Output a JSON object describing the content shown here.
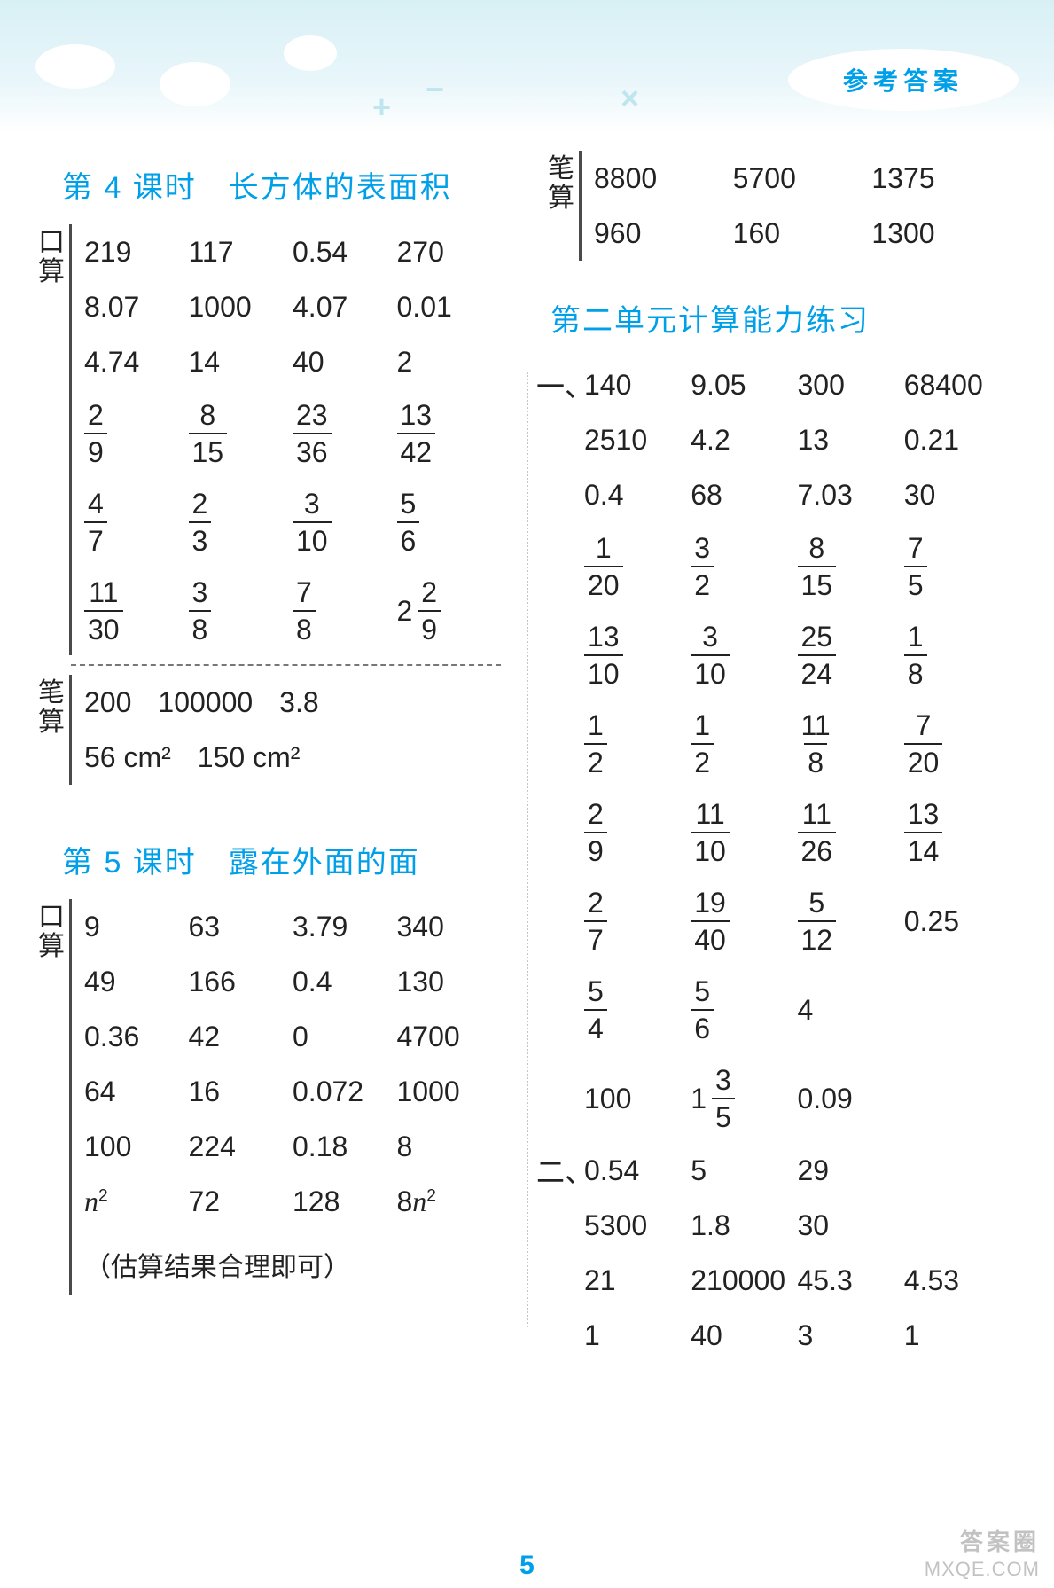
{
  "header": {
    "badge": "参考答案"
  },
  "pageNumber": "5",
  "watermark": {
    "line1": "答案圈",
    "line2": "MXQE.COM"
  },
  "left": {
    "sec4": {
      "title": "第 4 课时　长方体的表面积",
      "kousuan_label": "口算",
      "bisuan_label": "笔算",
      "plain_rows": [
        [
          "219",
          "117",
          "0.54",
          "270"
        ],
        [
          "8.07",
          "1000",
          "4.07",
          "0.01"
        ],
        [
          "4.74",
          "14",
          "40",
          "2"
        ]
      ],
      "frac_rows": [
        [
          [
            "2",
            "9"
          ],
          [
            "8",
            "15"
          ],
          [
            "23",
            "36"
          ],
          [
            "13",
            "42"
          ]
        ],
        [
          [
            "4",
            "7"
          ],
          [
            "2",
            "3"
          ],
          [
            "3",
            "10"
          ],
          [
            "5",
            "6"
          ]
        ]
      ],
      "mixed_row": {
        "cells": [
          {
            "type": "frac",
            "n": "11",
            "d": "30"
          },
          {
            "type": "frac",
            "n": "3",
            "d": "8"
          },
          {
            "type": "frac",
            "n": "7",
            "d": "8"
          },
          {
            "type": "mixed",
            "w": "2",
            "n": "2",
            "d": "9"
          }
        ]
      },
      "bisuan_rows": [
        [
          "200",
          "100000",
          "3.8"
        ],
        [
          "56 cm²",
          "150 cm²"
        ]
      ]
    },
    "sec5": {
      "title": "第 5 课时　露在外面的面",
      "kousuan_label": "口算",
      "bisuan_label": "笔算",
      "plain_rows": [
        [
          "9",
          "63",
          "3.79",
          "340"
        ],
        [
          "49",
          "166",
          "0.4",
          "130"
        ],
        [
          "0.36",
          "42",
          "0",
          "4700"
        ],
        [
          "64",
          "16",
          "0.072",
          "1000"
        ],
        [
          "100",
          "224",
          "0.18",
          "8"
        ]
      ],
      "n_row": [
        "n²",
        "72",
        "128",
        "8n²"
      ],
      "note": "（估算结果合理即可）"
    }
  },
  "right": {
    "top_bisuan": {
      "label": "笔算",
      "rows": [
        [
          "8800",
          "5700",
          "1375"
        ],
        [
          "960",
          "160",
          "1300"
        ]
      ]
    },
    "unit2": {
      "title": "第二单元计算能力练习",
      "yi_label": "一、",
      "er_label": "二、",
      "yi_plain_rows": [
        [
          "140",
          "9.05",
          "300",
          "68400"
        ],
        [
          "2510",
          "4.2",
          "13",
          "0.21"
        ],
        [
          "0.4",
          "68",
          "7.03",
          "30"
        ]
      ],
      "yi_frac_rows": [
        [
          [
            "1",
            "20"
          ],
          [
            "3",
            "2"
          ],
          [
            "8",
            "15"
          ],
          [
            "7",
            "5"
          ]
        ],
        [
          [
            "13",
            "10"
          ],
          [
            "3",
            "10"
          ],
          [
            "25",
            "24"
          ],
          [
            "1",
            "8"
          ]
        ],
        [
          [
            "1",
            "2"
          ],
          [
            "1",
            "2"
          ],
          [
            "11",
            "8"
          ],
          [
            "7",
            "20"
          ]
        ],
        [
          [
            "2",
            "9"
          ],
          [
            "11",
            "10"
          ],
          [
            "11",
            "26"
          ],
          [
            "13",
            "14"
          ]
        ]
      ],
      "yi_mix_row1": [
        {
          "type": "frac",
          "n": "2",
          "d": "7"
        },
        {
          "type": "frac",
          "n": "19",
          "d": "40"
        },
        {
          "type": "frac",
          "n": "5",
          "d": "12"
        },
        {
          "type": "text",
          "v": "0.25"
        }
      ],
      "yi_mix_row2": [
        {
          "type": "frac",
          "n": "5",
          "d": "4"
        },
        {
          "type": "frac",
          "n": "5",
          "d": "6"
        },
        {
          "type": "text",
          "v": "4"
        },
        {
          "type": "text",
          "v": ""
        }
      ],
      "yi_mix_row3": [
        {
          "type": "text",
          "v": "100"
        },
        {
          "type": "mixed",
          "w": "1",
          "n": "3",
          "d": "5"
        },
        {
          "type": "text",
          "v": "0.09"
        },
        {
          "type": "text",
          "v": ""
        }
      ],
      "er_rows": [
        [
          "0.54",
          "5",
          "29",
          ""
        ],
        [
          "5300",
          "1.8",
          "30",
          ""
        ],
        [
          "21",
          "210000",
          "45.3",
          "4.53"
        ],
        [
          "1",
          "40",
          "3",
          "1"
        ]
      ]
    }
  }
}
